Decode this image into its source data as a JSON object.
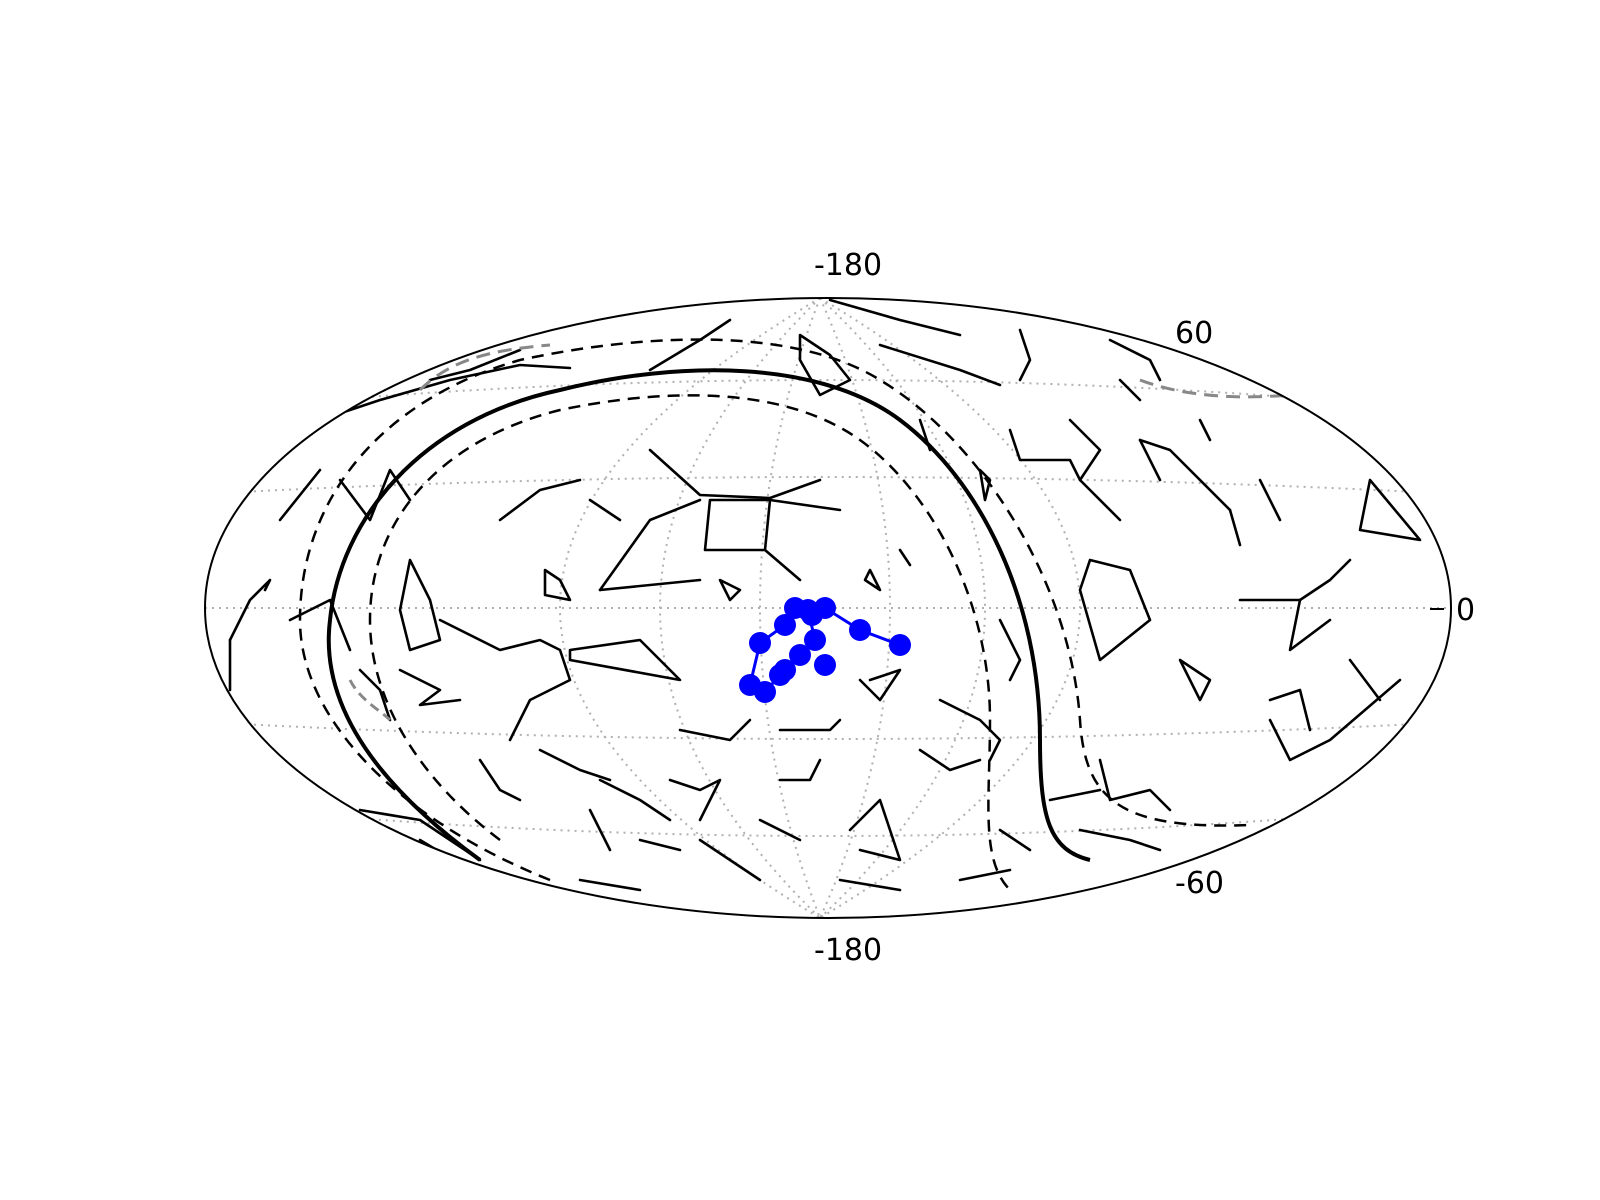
{
  "projection": "hammer-aitoff",
  "graticule": {
    "style": "dotted",
    "color": "#b0b0b0"
  },
  "labels": {
    "lon_top": "-180",
    "lon_bottom": "-180",
    "lat_north": "60",
    "lat_equator": "0",
    "lat_south": "-60"
  },
  "colors": {
    "outline": "#000000",
    "constellation_lines": "#000000",
    "highlight": "#0000ff",
    "gray_dashed": "#888888"
  },
  "highlight_constellation": {
    "marker": "circle",
    "color": "#0000ff"
  },
  "overlays": [
    {
      "name": "solid-great-circle",
      "style": "solid",
      "color": "#000000"
    },
    {
      "name": "dashed-outer-band",
      "style": "dashed",
      "color": "#000000"
    },
    {
      "name": "dashed-inner-band",
      "style": "dashed",
      "color": "#000000"
    },
    {
      "name": "gray-dashed-arcs",
      "style": "dashed",
      "color": "#888888"
    }
  ]
}
